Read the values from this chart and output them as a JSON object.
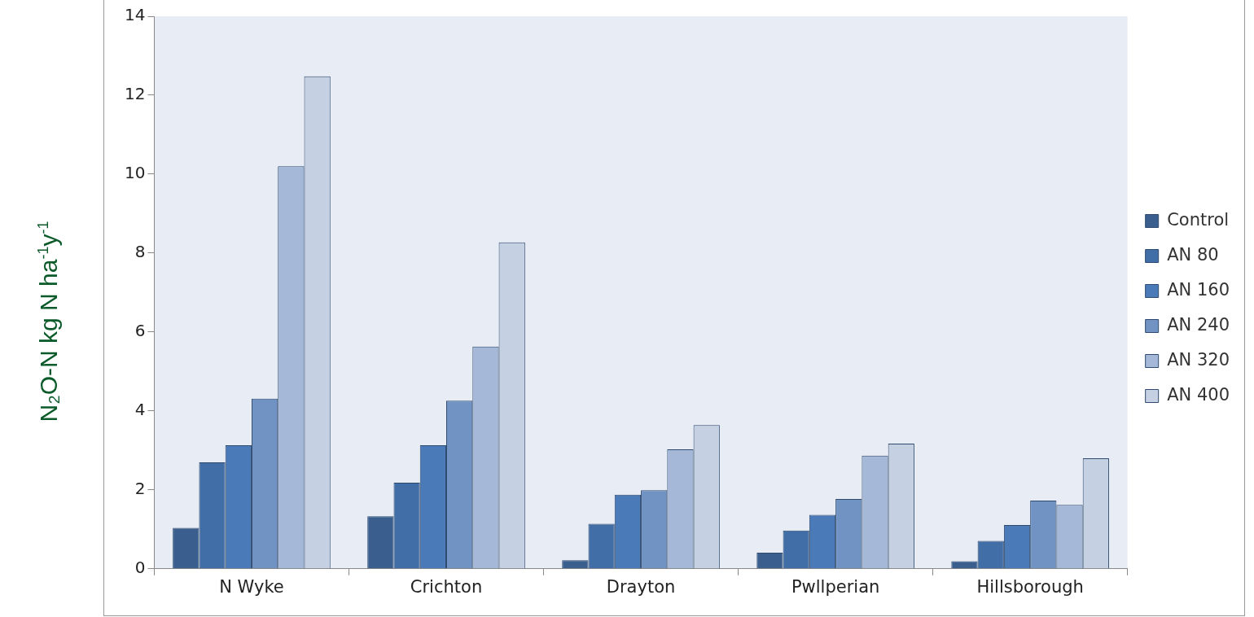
{
  "chart_data": {
    "type": "bar",
    "ylabel": "N₂O-N kg N ha$^{-1}$y$^{-1}$",
    "categories": [
      "N Wyke",
      "Crichton",
      "Drayton",
      "Pwllperian",
      "Hillsborough"
    ],
    "series": [
      {
        "name": "Control",
        "color": "#3a5f8f",
        "values": [
          1.04,
          1.33,
          0.22,
          0.41,
          0.19
        ]
      },
      {
        "name": "AN 80",
        "color": "#426ea8",
        "values": [
          2.7,
          2.18,
          1.14,
          0.97,
          0.71
        ]
      },
      {
        "name": "AN 160",
        "color": "#4a7ab8",
        "values": [
          3.13,
          3.13,
          1.88,
          1.37,
          1.11
        ]
      },
      {
        "name": "AN 240",
        "color": "#7193c4",
        "values": [
          4.31,
          4.26,
          1.99,
          1.77,
          1.73
        ]
      },
      {
        "name": "AN 320",
        "color": "#a5b8d8",
        "values": [
          10.2,
          5.63,
          3.03,
          2.87,
          1.62
        ]
      },
      {
        "name": "AN 400",
        "color": "#c5d0e3",
        "values": [
          12.48,
          8.27,
          3.64,
          3.17,
          2.8
        ]
      }
    ],
    "ylim": [
      0,
      14
    ],
    "yticks": [
      0,
      2,
      4,
      6,
      8,
      10,
      12,
      14
    ],
    "legend": "right"
  }
}
